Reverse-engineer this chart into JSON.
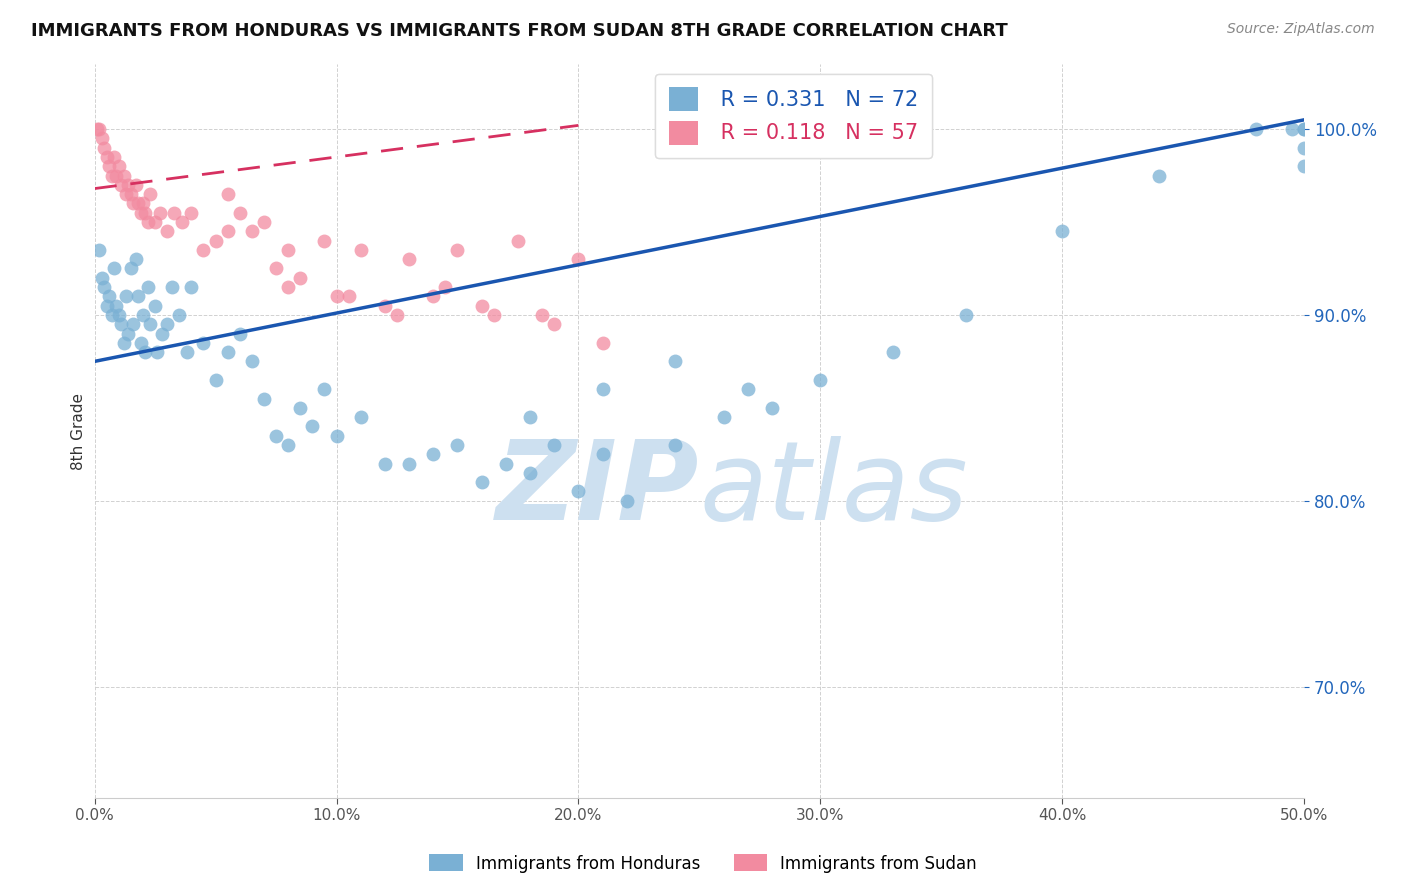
{
  "title": "IMMIGRANTS FROM HONDURAS VS IMMIGRANTS FROM SUDAN 8TH GRADE CORRELATION CHART",
  "source": "Source: ZipAtlas.com",
  "ylabel": "8th Grade",
  "legend1_label": "Immigrants from Honduras",
  "legend2_label": "Immigrants from Sudan",
  "R1": 0.331,
  "N1": 72,
  "R2": 0.118,
  "N2": 57,
  "color1": "#7ab0d4",
  "color2": "#f28ba0",
  "trendline1_color": "#1a56b0",
  "trendline2_color": "#d63060",
  "xlim": [
    0.0,
    50.0
  ],
  "ylim": [
    64.0,
    103.5
  ],
  "ytick_vals": [
    70.0,
    80.0,
    90.0,
    100.0
  ],
  "xtick_vals": [
    0.0,
    10.0,
    20.0,
    30.0,
    40.0,
    50.0
  ],
  "watermark_zip": "ZIP",
  "watermark_atlas": "atlas",
  "watermark_color": "#cde0f0",
  "background_color": "#ffffff",
  "grid_color": "#cccccc",
  "honduras_x": [
    0.2,
    0.3,
    0.4,
    0.5,
    0.6,
    0.7,
    0.8,
    0.9,
    1.0,
    1.1,
    1.2,
    1.3,
    1.4,
    1.5,
    1.6,
    1.7,
    1.8,
    1.9,
    2.0,
    2.1,
    2.2,
    2.3,
    2.5,
    2.6,
    2.8,
    3.0,
    3.2,
    3.5,
    3.8,
    4.0,
    4.5,
    5.0,
    5.5,
    6.0,
    6.5,
    7.0,
    7.5,
    8.0,
    8.5,
    9.0,
    9.5,
    10.0,
    11.0,
    12.0,
    13.0,
    14.0,
    15.0,
    16.0,
    17.0,
    18.0,
    19.0,
    20.0,
    21.0,
    22.0,
    24.0,
    26.0,
    28.0,
    30.0,
    33.0,
    36.0,
    40.0,
    44.0,
    48.0,
    49.5,
    50.0,
    50.0,
    50.0,
    50.0,
    18.0,
    21.0,
    24.0,
    27.0
  ],
  "honduras_y": [
    93.5,
    92.0,
    91.5,
    90.5,
    91.0,
    90.0,
    92.5,
    90.5,
    90.0,
    89.5,
    88.5,
    91.0,
    89.0,
    92.5,
    89.5,
    93.0,
    91.0,
    88.5,
    90.0,
    88.0,
    91.5,
    89.5,
    90.5,
    88.0,
    89.0,
    89.5,
    91.5,
    90.0,
    88.0,
    91.5,
    88.5,
    86.5,
    88.0,
    89.0,
    87.5,
    85.5,
    83.5,
    83.0,
    85.0,
    84.0,
    86.0,
    83.5,
    84.5,
    82.0,
    82.0,
    82.5,
    83.0,
    81.0,
    82.0,
    81.5,
    83.0,
    80.5,
    82.5,
    80.0,
    83.0,
    84.5,
    85.0,
    86.5,
    88.0,
    90.0,
    94.5,
    97.5,
    100.0,
    100.0,
    100.0,
    100.0,
    99.0,
    98.0,
    84.5,
    86.0,
    87.5,
    86.0
  ],
  "sudan_x": [
    0.1,
    0.2,
    0.3,
    0.4,
    0.5,
    0.6,
    0.7,
    0.8,
    0.9,
    1.0,
    1.1,
    1.2,
    1.3,
    1.4,
    1.5,
    1.6,
    1.7,
    1.8,
    1.9,
    2.0,
    2.1,
    2.2,
    2.3,
    2.5,
    2.7,
    3.0,
    3.3,
    3.6,
    4.0,
    4.5,
    5.0,
    5.5,
    6.0,
    7.0,
    8.0,
    9.5,
    11.0,
    13.0,
    15.0,
    17.5,
    20.0,
    7.5,
    8.5,
    10.0,
    12.0,
    14.5,
    16.0,
    18.5,
    5.5,
    6.5,
    8.0,
    10.5,
    12.5,
    14.0,
    16.5,
    19.0,
    21.0
  ],
  "sudan_y": [
    100.0,
    100.0,
    99.5,
    99.0,
    98.5,
    98.0,
    97.5,
    98.5,
    97.5,
    98.0,
    97.0,
    97.5,
    96.5,
    97.0,
    96.5,
    96.0,
    97.0,
    96.0,
    95.5,
    96.0,
    95.5,
    95.0,
    96.5,
    95.0,
    95.5,
    94.5,
    95.5,
    95.0,
    95.5,
    93.5,
    94.0,
    94.5,
    95.5,
    95.0,
    93.5,
    94.0,
    93.5,
    93.0,
    93.5,
    94.0,
    93.0,
    92.5,
    92.0,
    91.0,
    90.5,
    91.5,
    90.5,
    90.0,
    96.5,
    94.5,
    91.5,
    91.0,
    90.0,
    91.0,
    90.0,
    89.5,
    88.5
  ],
  "trendline1_x0": 0.0,
  "trendline1_y0": 87.5,
  "trendline1_x1": 50.0,
  "trendline1_y1": 100.5,
  "trendline2_x0": 0.0,
  "trendline2_y0": 96.8,
  "trendline2_x1": 20.0,
  "trendline2_y1": 100.2
}
